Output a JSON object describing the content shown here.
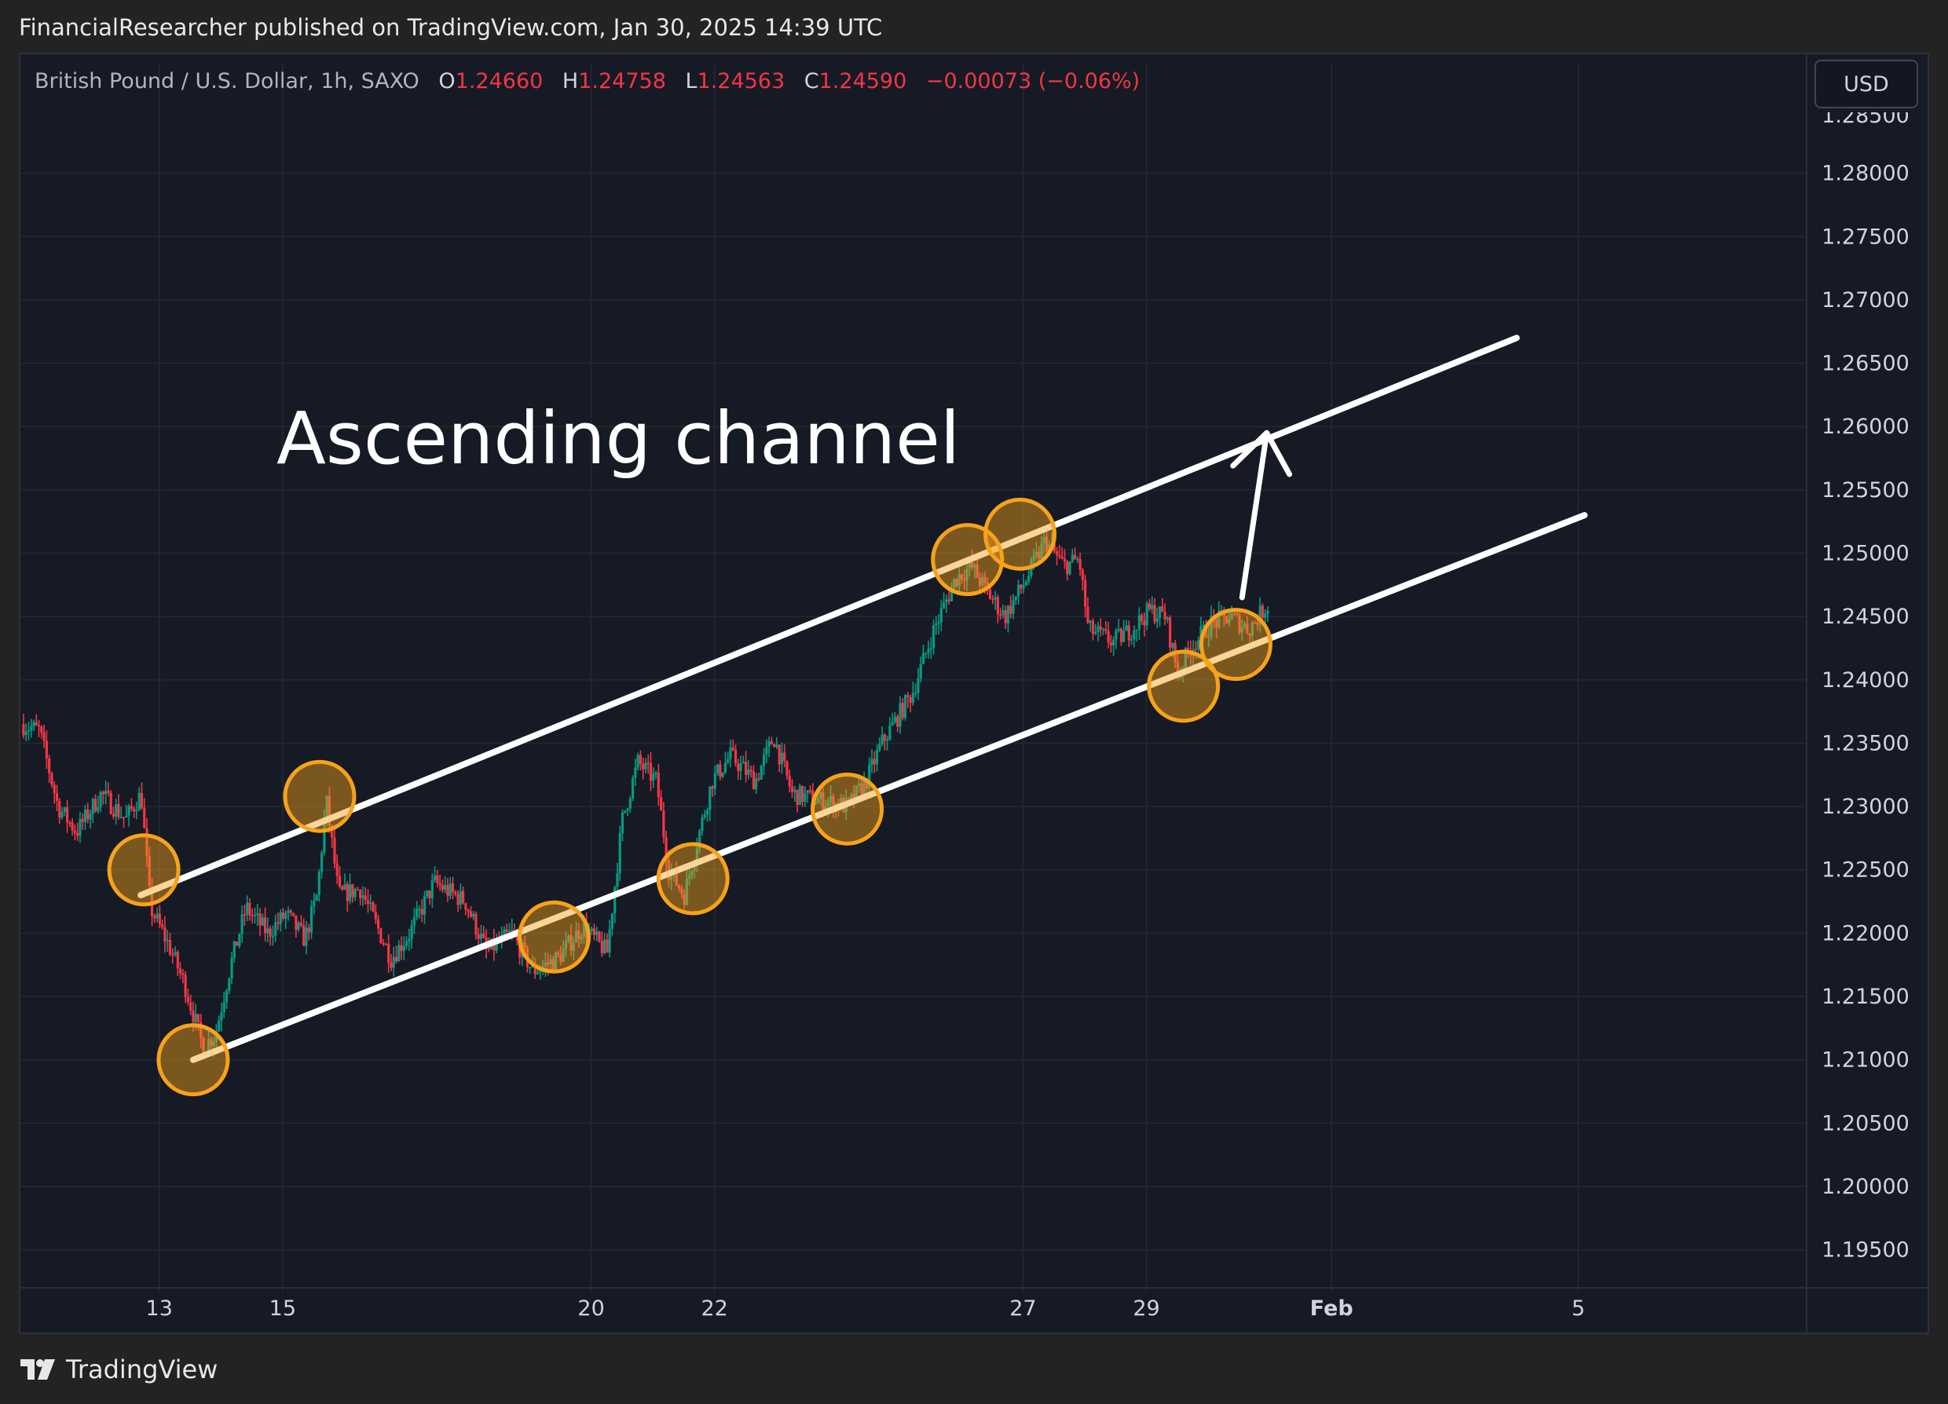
{
  "header": {
    "published_text": "FinancialResearcher published on TradingView.com, Jan 30, 2025 14:39 UTC"
  },
  "legend": {
    "symbol": "British Pound / U.S. Dollar, 1h, SAXO",
    "open_label": "O",
    "open": "1.24660",
    "high_label": "H",
    "high": "1.24758",
    "low_label": "L",
    "low": "1.24563",
    "close_label": "C",
    "close": "1.24590",
    "change": "−0.00073 (−0.06%)"
  },
  "currency_button": {
    "label": "USD"
  },
  "footer": {
    "brand": "TradingView"
  },
  "colors": {
    "background": "#161a25",
    "up": "#089981",
    "down": "#f23645",
    "channel_line": "#ffffff",
    "touch_marker": "#f7a21b",
    "grid": "#222631"
  },
  "chart_data": {
    "type": "candlestick",
    "symbol": "GBPUSD",
    "timeframe": "1h",
    "annotation_title": "Ascending channel",
    "y_axis": {
      "ticks": [
        "1.19500",
        "1.20000",
        "1.20500",
        "1.21000",
        "1.21500",
        "1.22000",
        "1.22500",
        "1.23000",
        "1.23500",
        "1.24000",
        "1.24500",
        "1.25000",
        "1.25500",
        "1.26000",
        "1.26500",
        "1.27000",
        "1.27500",
        "1.28000"
      ],
      "ylim": [
        1.192,
        1.285
      ]
    },
    "x_axis": {
      "ticks": [
        {
          "label": "13",
          "day": 13
        },
        {
          "label": "15",
          "day": 15
        },
        {
          "label": "20",
          "day": 20
        },
        {
          "label": "22",
          "day": 22
        },
        {
          "label": "27",
          "day": 27
        },
        {
          "label": "29",
          "day": 29
        },
        {
          "label": "Feb",
          "day": 32
        },
        {
          "label": "5",
          "day": 36
        }
      ],
      "xlim": [
        10.75,
        39.7
      ]
    },
    "price_path": [
      [
        10.8,
        1.2365
      ],
      [
        11.1,
        1.236
      ],
      [
        11.4,
        1.23
      ],
      [
        11.7,
        1.228
      ],
      [
        12.1,
        1.231
      ],
      [
        12.5,
        1.229
      ],
      [
        12.75,
        1.231
      ],
      [
        12.9,
        1.222
      ],
      [
        13.2,
        1.219
      ],
      [
        13.45,
        1.216
      ],
      [
        13.75,
        1.211
      ],
      [
        13.95,
        1.212
      ],
      [
        14.2,
        1.2175
      ],
      [
        14.45,
        1.222
      ],
      [
        14.8,
        1.22
      ],
      [
        15.1,
        1.2215
      ],
      [
        15.4,
        1.2195
      ],
      [
        15.6,
        1.223
      ],
      [
        15.75,
        1.2305
      ],
      [
        15.95,
        1.223
      ],
      [
        16.3,
        1.2235
      ],
      [
        16.8,
        1.218
      ],
      [
        17.1,
        1.22
      ],
      [
        17.5,
        1.224
      ],
      [
        18.0,
        1.2225
      ],
      [
        18.35,
        1.2185
      ],
      [
        18.75,
        1.22
      ],
      [
        19.1,
        1.217
      ],
      [
        19.5,
        1.218
      ],
      [
        19.9,
        1.2205
      ],
      [
        20.3,
        1.2185
      ],
      [
        20.55,
        1.229
      ],
      [
        20.8,
        1.2335
      ],
      [
        21.1,
        1.232
      ],
      [
        21.3,
        1.225
      ],
      [
        21.55,
        1.223
      ],
      [
        21.75,
        1.227
      ],
      [
        22.0,
        1.232
      ],
      [
        22.3,
        1.234
      ],
      [
        22.7,
        1.232
      ],
      [
        23.0,
        1.2355
      ],
      [
        23.3,
        1.231
      ],
      [
        23.75,
        1.2305
      ],
      [
        24.2,
        1.23
      ],
      [
        24.5,
        1.232
      ],
      [
        24.75,
        1.235
      ],
      [
        25.0,
        1.237
      ],
      [
        25.25,
        1.239
      ],
      [
        25.6,
        1.244
      ],
      [
        25.95,
        1.248
      ],
      [
        26.2,
        1.249
      ],
      [
        26.45,
        1.247
      ],
      [
        26.75,
        1.245
      ],
      [
        27.1,
        1.248
      ],
      [
        27.4,
        1.251
      ],
      [
        27.7,
        1.249
      ],
      [
        27.95,
        1.2495
      ],
      [
        28.1,
        1.244
      ],
      [
        28.5,
        1.243
      ],
      [
        28.8,
        1.244
      ],
      [
        29.1,
        1.2455
      ],
      [
        29.35,
        1.245
      ],
      [
        29.55,
        1.2405
      ],
      [
        29.75,
        1.2425
      ],
      [
        30.1,
        1.2445
      ],
      [
        30.4,
        1.245
      ],
      [
        30.7,
        1.244
      ],
      [
        31.0,
        1.2459
      ]
    ],
    "channel": {
      "upper_line": {
        "from": [
          12.7,
          1.223
        ],
        "to": [
          35.0,
          1.267
        ]
      },
      "lower_line": {
        "from": [
          13.55,
          1.21
        ],
        "to": [
          36.1,
          1.253
        ]
      }
    },
    "touch_points": [
      [
        12.75,
        1.225
      ],
      [
        13.55,
        1.21
      ],
      [
        15.6,
        1.2308
      ],
      [
        19.4,
        1.2197
      ],
      [
        21.65,
        1.2243
      ],
      [
        24.15,
        1.2298
      ],
      [
        26.1,
        1.2495
      ],
      [
        26.95,
        1.2515
      ],
      [
        29.6,
        1.2395
      ],
      [
        30.45,
        1.2428
      ]
    ],
    "arrow": {
      "from": [
        30.55,
        1.2465
      ],
      "to": [
        30.95,
        1.2595
      ]
    }
  }
}
